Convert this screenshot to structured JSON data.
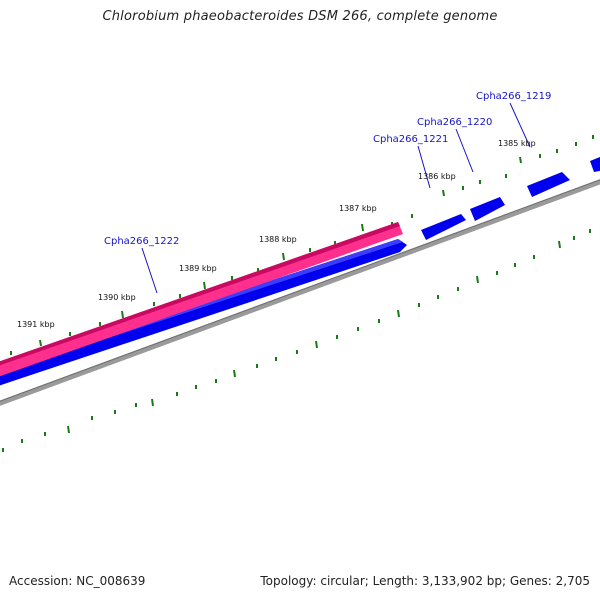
{
  "title": "Chlorobium phaeobacteroides DSM 266, complete genome",
  "footer": {
    "accession": "Accession: NC_008639",
    "summary": "Topology: circular; Length: 3,133,902 bp; Genes: 2,705"
  },
  "colors": {
    "forward_cds": "#ff2f8e",
    "reverse_cds": "#0000ee",
    "backbone": "#888888",
    "ticks": "#1a7a1a",
    "gene_label": "#1515c8"
  },
  "kbp_labels": [
    "1385 kbp",
    "1386 kbp",
    "1387 kbp",
    "1388 kbp",
    "1389 kbp",
    "1390 kbp",
    "1391 kbp"
  ],
  "gene_labels": [
    "Cpha266_1219",
    "Cpha266_1220",
    "Cpha266_1221",
    "Cpha266_1222"
  ]
}
